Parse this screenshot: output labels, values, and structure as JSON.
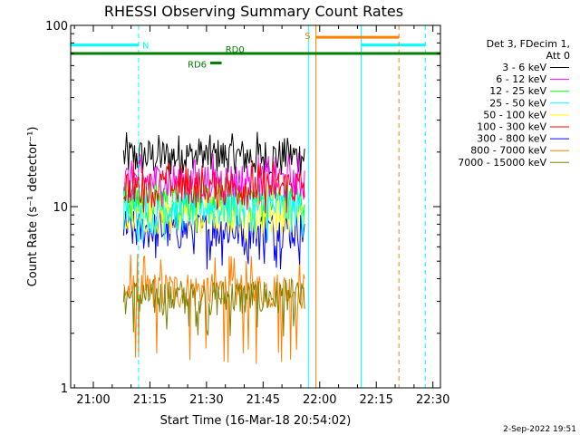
{
  "chart_data": {
    "type": "line",
    "title": "RHESSI Observing Summary Count Rates",
    "xlabel": "Start Time (16-Mar-18 20:54:02)",
    "ylabel": "Count Rate (s⁻¹ detector⁻¹)",
    "x_range": [
      "20:54",
      "22:32"
    ],
    "ylim": [
      1,
      100
    ],
    "yscale": "log",
    "x_ticks": [
      "21:00",
      "21:15",
      "21:30",
      "21:45",
      "22:00",
      "22:15",
      "22:30"
    ],
    "y_ticks": [
      "1",
      "10",
      "100"
    ],
    "legend_header": [
      "Det 3, FDecim 1,",
      "Att 0"
    ],
    "legend_position": "right",
    "series": [
      {
        "name": "3 - 6 keV",
        "color": "#000000",
        "start": "21:08",
        "end": "21:56",
        "typical": 19,
        "low": 16,
        "high": 27
      },
      {
        "name": "6 - 12 keV",
        "color": "#ff00ff",
        "start": "21:08",
        "end": "21:56",
        "typical": 14,
        "low": 11,
        "high": 20
      },
      {
        "name": "12 - 25 keV",
        "color": "#00ff00",
        "start": "21:08",
        "end": "21:56",
        "typical": 11,
        "low": 8,
        "high": 15
      },
      {
        "name": "25 - 50 keV",
        "color": "#00ffff",
        "start": "21:08",
        "end": "21:56",
        "typical": 10,
        "low": 7,
        "high": 13
      },
      {
        "name": "50 - 100 keV",
        "color": "#ffff00",
        "start": "21:08",
        "end": "21:56",
        "typical": 9,
        "low": 7,
        "high": 12
      },
      {
        "name": "100 - 300 keV",
        "color": "#ff0000",
        "start": "21:08",
        "end": "21:56",
        "typical": 13,
        "low": 10,
        "high": 18
      },
      {
        "name": "300 - 800 keV",
        "color": "#0000ff",
        "start": "21:08",
        "end": "21:56",
        "typical": 7.5,
        "low": 5,
        "high": 10
      },
      {
        "name": "800 - 7000 keV",
        "color": "#ff8000",
        "start": "21:08",
        "end": "21:56",
        "typical": 3.5,
        "low": 1.5,
        "high": 5.5
      },
      {
        "name": "7000 - 15000 keV",
        "color": "#808000",
        "start": "21:08",
        "end": "21:56",
        "typical": 3.2,
        "low": 2,
        "high": 4
      }
    ],
    "annotations": [
      {
        "label": "N",
        "color": "#00ffff",
        "bar_start": "20:54",
        "bar_end": "21:12",
        "level": 78,
        "vlines_solid": [
          "20:54"
        ],
        "vlines_dashed": [
          "21:12"
        ]
      },
      {
        "label": "",
        "color": "#00ffff",
        "bar_start": "22:11",
        "bar_end": "22:28",
        "level": 78,
        "vlines_solid": [
          "22:11"
        ],
        "vlines_dashed": [
          "22:28"
        ]
      },
      {
        "label": "",
        "color": "#00ffff",
        "bar_start": "",
        "bar_end": "",
        "level": 0,
        "vlines_solid": [
          "21:57"
        ],
        "vlines_dashed": []
      },
      {
        "label": "S",
        "color": "#ff8000",
        "bar_start": "21:59",
        "bar_end": "22:21",
        "level": 86,
        "vlines_solid": [
          "21:59"
        ],
        "vlines_dashed": [
          "22:21"
        ]
      },
      {
        "label": "RD0",
        "color": "#008000",
        "bar_start": "20:54",
        "bar_end": "22:32",
        "level": 70,
        "vlines_solid": [],
        "vlines_dashed": []
      },
      {
        "label": "RD6",
        "color": "#008000",
        "bar_start": "21:31",
        "bar_end": "21:34",
        "level": 62,
        "vlines_solid": [],
        "vlines_dashed": []
      }
    ],
    "footer_date": "2-Sep-2022 19:51"
  }
}
